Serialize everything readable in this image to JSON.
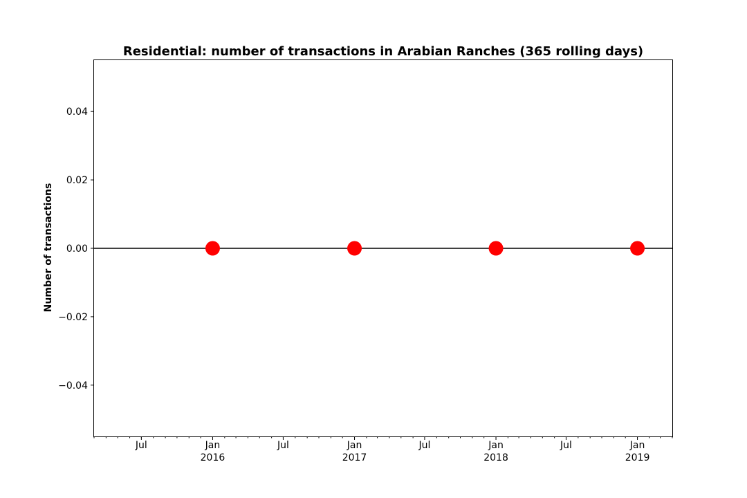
{
  "chart_data": {
    "type": "line",
    "title": "Residential: number of transactions in Arabian Ranches (365 rolling days)",
    "xlabel": "",
    "ylabel": "Number of transactions",
    "ylim": [
      -0.055,
      0.055
    ],
    "xlim": [
      "2015-03-01",
      "2019-04-01"
    ],
    "grid": false,
    "series": [
      {
        "line_color": "#000000",
        "marker_color": "#ff0000",
        "points": [
          {
            "x": "2016-01-01",
            "y": 0
          },
          {
            "x": "2017-01-01",
            "y": 0
          },
          {
            "x": "2018-01-01",
            "y": 0
          },
          {
            "x": "2019-01-01",
            "y": 0
          }
        ]
      }
    ],
    "y_ticks": [
      {
        "value": 0.04,
        "label": "0.04"
      },
      {
        "value": 0.02,
        "label": "0.02"
      },
      {
        "value": 0.0,
        "label": "0.00"
      },
      {
        "value": -0.02,
        "label": "−0.02"
      },
      {
        "value": -0.04,
        "label": "−0.04"
      }
    ],
    "x_major_ticks": [
      {
        "date": "2015-07-01",
        "label": "Jul",
        "sublabel": ""
      },
      {
        "date": "2016-01-01",
        "label": "Jan",
        "sublabel": "2016"
      },
      {
        "date": "2016-07-01",
        "label": "Jul",
        "sublabel": ""
      },
      {
        "date": "2017-01-01",
        "label": "Jan",
        "sublabel": "2017"
      },
      {
        "date": "2017-07-01",
        "label": "Jul",
        "sublabel": ""
      },
      {
        "date": "2018-01-01",
        "label": "Jan",
        "sublabel": "2018"
      },
      {
        "date": "2018-07-01",
        "label": "Jul",
        "sublabel": ""
      },
      {
        "date": "2019-01-01",
        "label": "Jan",
        "sublabel": "2019"
      }
    ],
    "x_minor_ticks": "monthly"
  }
}
